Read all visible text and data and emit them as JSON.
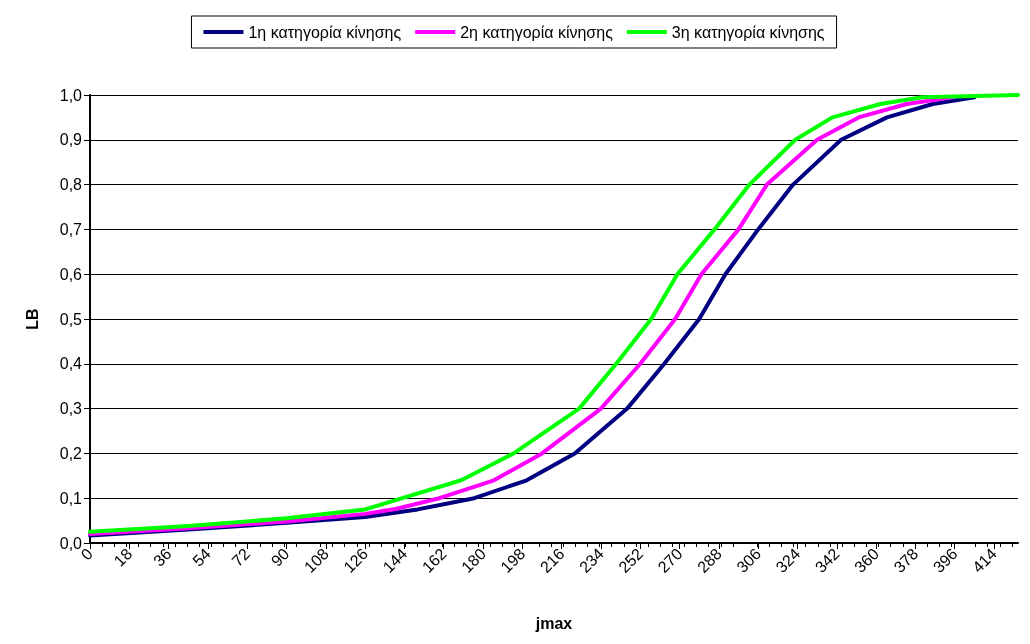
{
  "chart_data": {
    "type": "line",
    "xlabel": "jmax",
    "ylabel": "LB",
    "xlim": [
      0,
      425
    ],
    "xticks": [
      0,
      18,
      36,
      54,
      72,
      90,
      108,
      126,
      144,
      162,
      180,
      198,
      216,
      234,
      252,
      270,
      288,
      306,
      324,
      342,
      360,
      378,
      396,
      414
    ],
    "ylim": [
      0,
      1
    ],
    "yticks": [
      {
        "value": 0,
        "label": "0,0"
      },
      {
        "value": 0.1,
        "label": "0,1"
      },
      {
        "value": 0.2,
        "label": "0,2"
      },
      {
        "value": 0.3,
        "label": "0,3"
      },
      {
        "value": 0.4,
        "label": "0,4"
      },
      {
        "value": 0.5,
        "label": "0,5"
      },
      {
        "value": 0.6,
        "label": "0,6"
      },
      {
        "value": 0.7,
        "label": "0,7"
      },
      {
        "value": 0.8,
        "label": "0,8"
      },
      {
        "value": 0.9,
        "label": "0,9"
      },
      {
        "value": 1,
        "label": "1,0"
      }
    ],
    "grid": "y",
    "legend": "top",
    "marker": "none",
    "line_style": "solid",
    "series": [
      {
        "name": "1η κατηγορία κίνησης",
        "color": "#000080",
        "x": [
          0,
          45,
          90,
          126,
          150,
          176,
          200,
          222,
          246,
          263,
          279,
          291,
          306,
          322,
          344,
          365,
          386,
          405
        ],
        "values": [
          0.017,
          0.03,
          0.045,
          0.058,
          0.075,
          0.1,
          0.14,
          0.2,
          0.3,
          0.4,
          0.5,
          0.6,
          0.7,
          0.8,
          0.9,
          0.95,
          0.98,
          0.995
        ]
      },
      {
        "name": "2η κατηγορία κίνησης",
        "color": "#ff00ff",
        "x": [
          0,
          45,
          90,
          126,
          140,
          160,
          185,
          207,
          234,
          252,
          268,
          280,
          297,
          310,
          333,
          352,
          374,
          395
        ],
        "values": [
          0.02,
          0.033,
          0.048,
          0.065,
          0.076,
          0.1,
          0.14,
          0.2,
          0.3,
          0.4,
          0.5,
          0.6,
          0.7,
          0.8,
          0.9,
          0.95,
          0.98,
          0.995
        ]
      },
      {
        "name": "3η κατηγορία κίνησης",
        "color": "#00ff00",
        "x": [
          0,
          45,
          90,
          126,
          143,
          170,
          194,
          224,
          241,
          257,
          269,
          286,
          302,
          323,
          340,
          362,
          381,
          425
        ],
        "values": [
          0.025,
          0.038,
          0.055,
          0.075,
          0.1,
          0.14,
          0.2,
          0.3,
          0.4,
          0.5,
          0.6,
          0.7,
          0.8,
          0.9,
          0.95,
          0.98,
          0.995,
          1
        ]
      }
    ]
  }
}
